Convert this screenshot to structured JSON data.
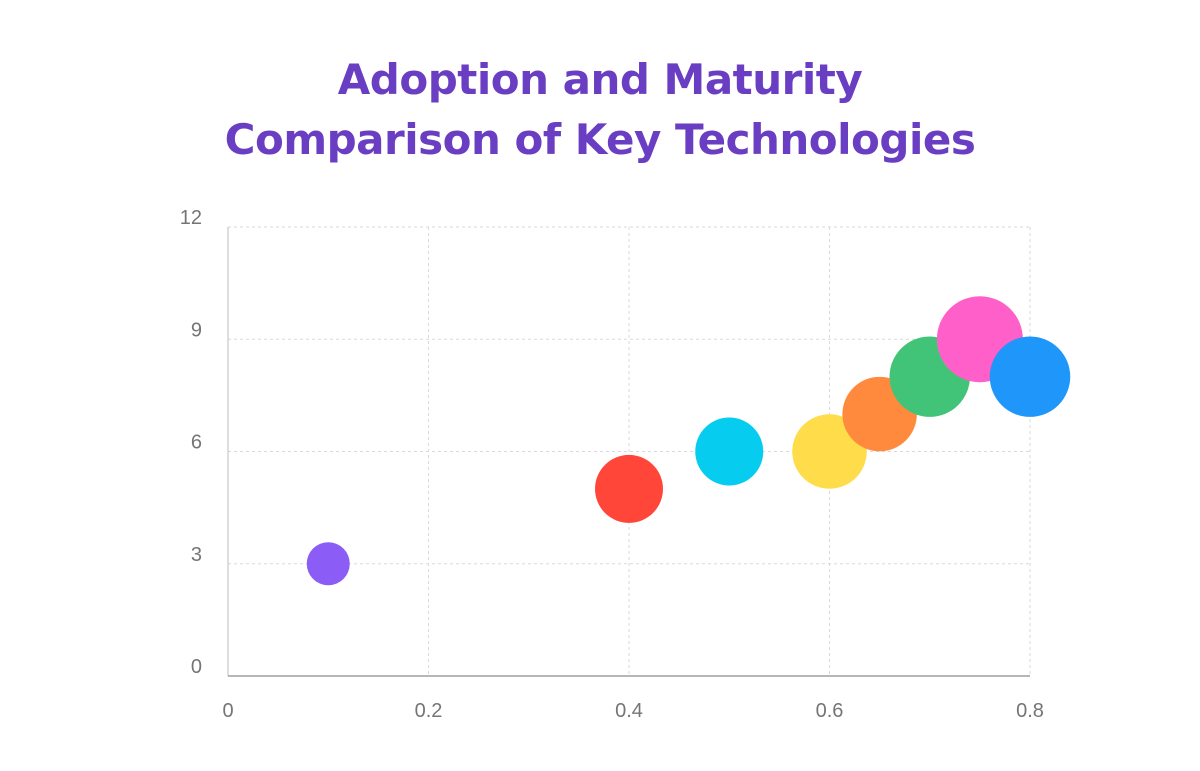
{
  "chart_data": {
    "type": "bubble",
    "title_lines": [
      "Adoption and Maturity",
      "Comparison of Key Technologies"
    ],
    "title_color": "#6a3ec2",
    "xlim": [
      0,
      0.8
    ],
    "ylim": [
      0,
      12
    ],
    "x_ticks": [
      0,
      0.2,
      0.4,
      0.6,
      0.8
    ],
    "y_ticks": [
      0,
      3,
      6,
      9,
      12
    ],
    "x_tick_labels": [
      "0",
      "0.2",
      "0.4",
      "0.6",
      "0.8"
    ],
    "y_tick_labels": [
      "0",
      "3",
      "6",
      "9",
      "12"
    ],
    "grid": true,
    "legend": "none",
    "points": [
      {
        "x": 0.1,
        "y": 3,
        "size": 2,
        "color": "#8b5cf6"
      },
      {
        "x": 0.4,
        "y": 5,
        "size": 5,
        "color": "#ff4638"
      },
      {
        "x": 0.5,
        "y": 6,
        "size": 5,
        "color": "#06ccf0"
      },
      {
        "x": 0.6,
        "y": 6,
        "size": 6,
        "color": "#ffdc4a"
      },
      {
        "x": 0.65,
        "y": 7,
        "size": 6,
        "color": "#ff8a3d"
      },
      {
        "x": 0.7,
        "y": 8,
        "size": 7,
        "color": "#42c478"
      },
      {
        "x": 0.75,
        "y": 9,
        "size": 8,
        "color": "#ff5fc8"
      },
      {
        "x": 0.8,
        "y": 8,
        "size": 7,
        "color": "#1e96fa"
      }
    ]
  }
}
